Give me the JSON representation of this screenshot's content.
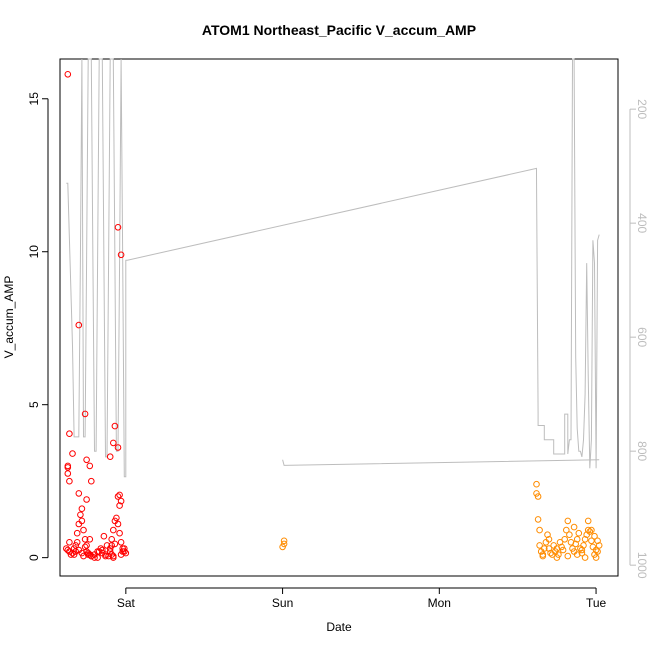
{
  "chart_data": {
    "type": "scatter",
    "title": "ATOM1 Northeast_Pacific V_accum_AMP",
    "xlabel": "Date",
    "ylabel": "V_accum_AMP",
    "x_tick_labels": [
      "Sat",
      "Sun",
      "Mon",
      "Tue"
    ],
    "y_ticks": [
      0,
      5,
      10,
      15
    ],
    "y_tick_labels": [
      "0",
      "5",
      "10",
      "15"
    ],
    "ylim": [
      -0.6,
      16.3
    ],
    "xlim_days": [
      0.58,
      4.14
    ],
    "right_axis": {
      "ticks": [
        200,
        400,
        600,
        800,
        1000
      ],
      "tick_labels": [
        "200",
        "400",
        "600",
        "800",
        "1000"
      ],
      "reversed": true,
      "color": "#bdbdbd"
    },
    "grid": false,
    "legend": "none",
    "series": [
      {
        "color": "#ff0000",
        "marker": "open-circle",
        "x": [
          0.63,
          0.64,
          0.66,
          0.63,
          0.63,
          0.64,
          0.63,
          0.64,
          0.7,
          0.74,
          0.75,
          0.77,
          0.78,
          0.9,
          0.92,
          0.93,
          0.95,
          0.95,
          0.97,
          0.96,
          0.97,
          0.62,
          0.63,
          0.64,
          0.66,
          0.67,
          0.68,
          0.69,
          0.69,
          0.7,
          0.71,
          0.72,
          0.72,
          0.73,
          0.74,
          0.75,
          0.75,
          0.76,
          0.76,
          0.77,
          0.78,
          0.8,
          0.82,
          0.84,
          0.85,
          0.87,
          0.89,
          0.9,
          0.91,
          0.91,
          0.92,
          0.93,
          0.94,
          0.95,
          0.96,
          0.97,
          0.98,
          0.99,
          1.0,
          0.7,
          0.75,
          0.82,
          0.87,
          0.9,
          0.92,
          0.95,
          0.65,
          0.7,
          0.73,
          0.77,
          0.83,
          0.88,
          0.92,
          0.97,
          0.99,
          0.67,
          0.72,
          0.74,
          0.8,
          0.86,
          0.93,
          0.96,
          0.68,
          0.78,
          0.85,
          0.91,
          0.98
        ],
        "y": [
          15.8,
          4.05,
          3.4,
          3.0,
          2.75,
          2.5,
          2.95,
          0.5,
          7.6,
          4.7,
          3.2,
          3.0,
          2.5,
          3.3,
          3.75,
          4.3,
          3.6,
          10.8,
          9.9,
          2.05,
          1.85,
          0.3,
          0.25,
          0.2,
          0.15,
          0.3,
          0.4,
          0.5,
          0.8,
          1.1,
          1.4,
          1.2,
          1.6,
          0.9,
          0.6,
          0.4,
          0.2,
          0.15,
          0.1,
          0.1,
          0.05,
          0.1,
          0.2,
          0.3,
          0.15,
          0.1,
          0.05,
          0.2,
          0.4,
          0.6,
          0.9,
          1.2,
          1.3,
          1.1,
          0.8,
          0.5,
          0.3,
          0.2,
          0.15,
          2.1,
          1.9,
          0.0,
          0.05,
          0.3,
          0.0,
          2.0,
          0.1,
          0.25,
          0.05,
          0.6,
          0.2,
          0.4,
          0.05,
          0.1,
          0.3,
          0.1,
          0.15,
          0.35,
          0.0,
          0.7,
          0.45,
          1.7,
          0.2,
          0.05,
          0.25,
          0.1,
          0.2
        ]
      },
      {
        "color": "#ff8c00",
        "marker": "open-circle",
        "x": [
          2.0,
          2.01,
          2.01,
          3.62,
          3.62,
          3.63,
          3.63,
          3.64,
          3.64,
          3.65,
          3.66,
          3.67,
          3.68,
          3.69,
          3.7,
          3.7,
          3.71,
          3.72,
          3.73,
          3.74,
          3.75,
          3.76,
          3.77,
          3.78,
          3.79,
          3.8,
          3.81,
          3.82,
          3.83,
          3.84,
          3.85,
          3.86,
          3.87,
          3.88,
          3.89,
          3.9,
          3.91,
          3.92,
          3.93,
          3.94,
          3.95,
          3.96,
          3.97,
          3.98,
          3.99,
          4.0,
          4.01,
          4.02,
          3.95,
          3.97,
          3.99,
          4.01,
          3.86,
          3.91,
          3.66,
          3.75,
          3.82,
          3.88,
          3.93,
          4.0
        ],
        "y": [
          0.35,
          0.45,
          0.55,
          2.4,
          2.1,
          2.0,
          1.25,
          0.9,
          0.4,
          0.2,
          0.1,
          0.3,
          0.5,
          0.75,
          0.6,
          0.3,
          0.15,
          0.1,
          0.4,
          0.2,
          0.3,
          0.1,
          0.5,
          0.35,
          0.25,
          0.6,
          0.9,
          1.2,
          0.75,
          0.5,
          0.3,
          0.2,
          0.45,
          0.6,
          0.8,
          0.3,
          0.15,
          0.4,
          0.6,
          0.75,
          0.9,
          0.85,
          0.55,
          0.35,
          0.1,
          0.0,
          0.2,
          0.4,
          1.2,
          0.9,
          0.7,
          0.55,
          1.0,
          0.25,
          0.05,
          0.0,
          0.05,
          0.1,
          0.0,
          0.25
        ]
      }
    ],
    "depth_line": {
      "color": "#bdbdbd",
      "segments": [
        [
          [
            0.62,
            330
          ],
          [
            0.63,
            330
          ],
          [
            0.66,
            615
          ],
          [
            0.67,
            775
          ],
          [
            0.7,
            775
          ],
          [
            0.71,
            465
          ],
          [
            0.72,
            0
          ],
          [
            0.73,
            775
          ],
          [
            0.74,
            775
          ],
          [
            0.75,
            465
          ],
          [
            0.76,
            0
          ],
          [
            0.78,
            0
          ],
          [
            0.79,
            465
          ],
          [
            0.8,
            800
          ],
          [
            0.81,
            800
          ],
          [
            0.82,
            465
          ],
          [
            0.83,
            0
          ],
          [
            0.85,
            0
          ],
          [
            0.86,
            465
          ],
          [
            0.87,
            810
          ],
          [
            0.88,
            810
          ],
          [
            0.89,
            465
          ],
          [
            0.9,
            0
          ],
          [
            0.92,
            0
          ],
          [
            0.93,
            465
          ],
          [
            0.94,
            800
          ],
          [
            0.95,
            800
          ],
          [
            0.96,
            465
          ],
          [
            0.97,
            0
          ],
          [
            0.98,
            465
          ],
          [
            0.99,
            845
          ],
          [
            1.0,
            845
          ],
          [
            1.0,
            465
          ],
          [
            1.01,
            465
          ],
          [
            3.62,
            304
          ],
          [
            3.62,
            315
          ],
          [
            3.63,
            735
          ],
          [
            3.63,
            755
          ],
          [
            3.67,
            755
          ],
          [
            3.67,
            780
          ],
          [
            3.73,
            780
          ],
          [
            3.73,
            805
          ],
          [
            3.8,
            805
          ],
          [
            3.8,
            735
          ],
          [
            3.82,
            735
          ],
          [
            3.82,
            805
          ],
          [
            3.83,
            780
          ],
          [
            3.84,
            780
          ],
          [
            3.85,
            0
          ],
          [
            3.86,
            0
          ],
          [
            3.87,
            635
          ],
          [
            3.88,
            760
          ],
          [
            3.89,
            800
          ],
          [
            3.9,
            800
          ],
          [
            3.91,
            810
          ],
          [
            3.92,
            780
          ],
          [
            3.93,
            700
          ],
          [
            3.94,
            470
          ],
          [
            3.95,
            665
          ],
          [
            3.96,
            830
          ],
          [
            3.97,
            780
          ],
          [
            3.98,
            430
          ],
          [
            3.99,
            470
          ],
          [
            4.0,
            830
          ],
          [
            4.01,
            430
          ],
          [
            4.02,
            420
          ]
        ],
        [
          [
            2.0,
            815
          ],
          [
            2.01,
            825
          ],
          [
            4.02,
            815
          ]
        ]
      ]
    }
  }
}
